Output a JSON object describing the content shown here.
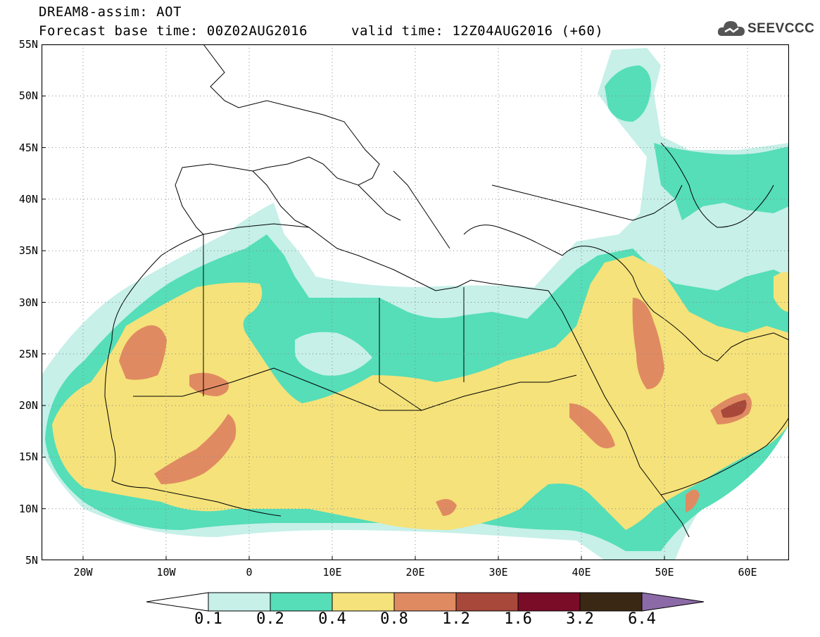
{
  "header": {
    "title": "DREAM8-assim: AOT",
    "base_time": "Forecast base time: 00Z02AUG2016",
    "valid_time": "valid time: 12Z04AUG2016 (+60)"
  },
  "logo": {
    "text": "SEEVCCC",
    "icon": "cloud-logo-icon"
  },
  "map": {
    "lat_labels": [
      "55N",
      "50N",
      "45N",
      "40N",
      "35N",
      "30N",
      "25N",
      "20N",
      "15N",
      "10N",
      "5N"
    ],
    "lon_labels": [
      "20W",
      "10W",
      "0",
      "10E",
      "20E",
      "30E",
      "40E",
      "50E",
      "60E"
    ],
    "lat_range": [
      5,
      55
    ],
    "lon_range": [
      -25,
      65
    ],
    "grid": "dotted"
  },
  "legend": {
    "labels": [
      "0.1",
      "0.2",
      "0.4",
      "0.8",
      "1.2",
      "1.6",
      "3.2",
      "6.4"
    ],
    "colors": [
      "#ffffff",
      "#c6f0e8",
      "#55deb8",
      "#f5e27a",
      "#e08a62",
      "#a8483a",
      "#7a0c28",
      "#3a2814",
      "#8c6aa8"
    ]
  }
}
